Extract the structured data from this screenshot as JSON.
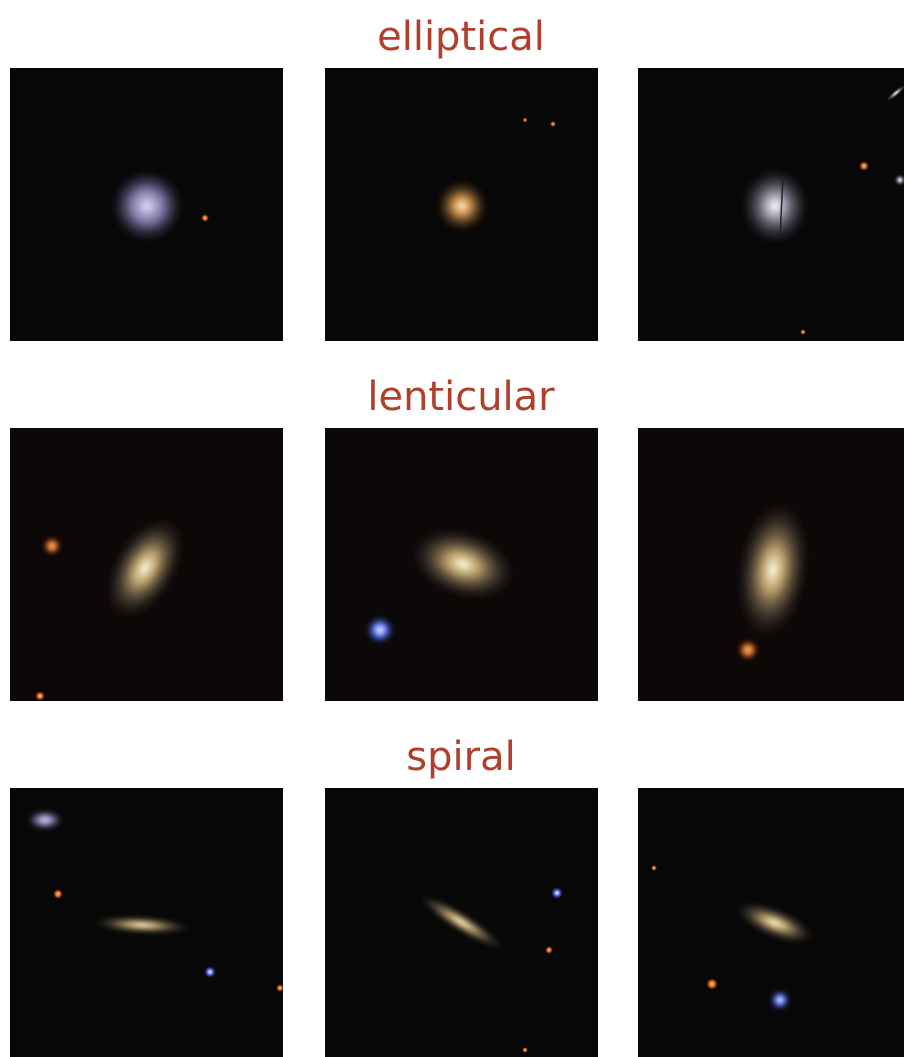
{
  "sections": [
    {
      "title": "elliptical"
    },
    {
      "title": "lenticular"
    },
    {
      "title": "spiral"
    }
  ]
}
